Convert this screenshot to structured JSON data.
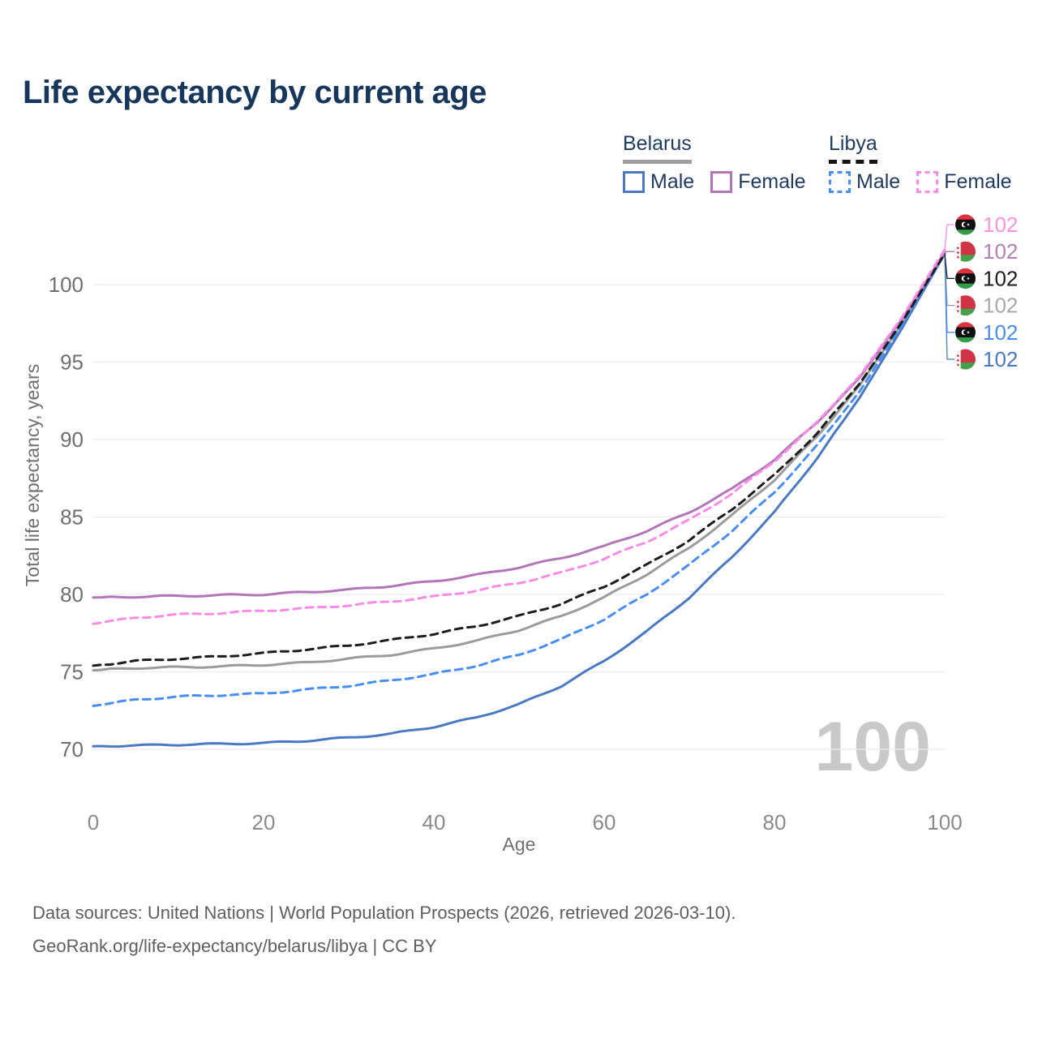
{
  "title": "Life expectancy by current age",
  "legend": {
    "groups": [
      {
        "country": "Belarus",
        "line_style": "solid",
        "items": [
          {
            "label": "Male",
            "series": "bm"
          },
          {
            "label": "Female",
            "series": "bf"
          }
        ]
      },
      {
        "country": "Libya",
        "line_style": "dashed",
        "items": [
          {
            "label": "Male",
            "series": "lm"
          },
          {
            "label": "Female",
            "series": "lf"
          }
        ]
      }
    ]
  },
  "watermark": "100",
  "footer": {
    "line1": "Data sources: United Nations | World Population Prospects (2026, retrieved 2026-03-10).",
    "line2": "GeoRank.org/life-expectancy/belarus/libya | CC BY"
  },
  "chart_data": {
    "type": "line",
    "title": "Life expectancy by current age",
    "xlabel": "Age",
    "ylabel": "Total life expectancy, years",
    "xlim": [
      0,
      100
    ],
    "ylim": [
      68.5,
      103.5
    ],
    "x_ticks": [
      0,
      20,
      40,
      60,
      80,
      100
    ],
    "y_ticks": [
      70,
      75,
      80,
      85,
      90,
      95,
      100
    ],
    "grid": "horizontal-only",
    "gridline_color": "#ececec",
    "ages": [
      0,
      5,
      10,
      15,
      20,
      25,
      30,
      35,
      40,
      45,
      50,
      55,
      60,
      65,
      70,
      75,
      80,
      85,
      90,
      95,
      100
    ],
    "series": [
      {
        "id": "bb",
        "name": "Belarus Both sexes",
        "country": "Belarus",
        "sex": "Both",
        "color": "#9b9b9b",
        "dash": false,
        "end_label": "102",
        "label_color": "#a8a8a8",
        "label_row": 3,
        "flag": "belarus",
        "values": [
          75.1,
          75.25,
          75.3,
          75.35,
          75.45,
          75.6,
          75.85,
          76.1,
          76.5,
          77.0,
          77.7,
          78.6,
          79.8,
          81.3,
          83.0,
          85.1,
          87.4,
          90.2,
          93.5,
          97.5,
          102.0
        ]
      },
      {
        "id": "bm",
        "name": "Belarus Male",
        "country": "Belarus",
        "sex": "Male",
        "color": "#4a79c4",
        "dash": false,
        "end_label": "102",
        "label_color": "#4a79c4",
        "label_row": 5,
        "flag": "belarus",
        "values": [
          70.2,
          70.25,
          70.3,
          70.35,
          70.4,
          70.55,
          70.75,
          71.0,
          71.45,
          72.05,
          72.9,
          74.1,
          75.7,
          77.6,
          79.8,
          82.4,
          85.3,
          88.8,
          92.7,
          97.2,
          102.0
        ]
      },
      {
        "id": "lm",
        "name": "Libya Male",
        "country": "Libya",
        "sex": "Male",
        "color": "#488ef2",
        "dash": true,
        "end_label": "102",
        "label_color": "#488ef2",
        "label_row": 4,
        "flag": "libya",
        "values": [
          72.8,
          73.2,
          73.4,
          73.5,
          73.6,
          73.85,
          74.1,
          74.45,
          74.85,
          75.4,
          76.1,
          77.1,
          78.4,
          80.0,
          81.9,
          84.1,
          86.6,
          89.6,
          93.1,
          97.4,
          102.0
        ]
      },
      {
        "id": "bf",
        "name": "Belarus Female",
        "country": "Belarus",
        "sex": "Female",
        "color": "#b175b8",
        "dash": false,
        "end_label": "102",
        "label_color": "#b57fb5",
        "label_row": 1,
        "flag": "belarus",
        "values": [
          79.8,
          79.85,
          79.9,
          79.95,
          80.0,
          80.15,
          80.3,
          80.55,
          80.85,
          81.25,
          81.75,
          82.35,
          83.1,
          84.1,
          85.3,
          86.8,
          88.7,
          91.1,
          94.0,
          97.8,
          102.1
        ]
      },
      {
        "id": "lb",
        "name": "Libya Both sexes",
        "country": "Libya",
        "sex": "Both",
        "color": "#1c1c1c",
        "dash": true,
        "end_label": "102",
        "label_color": "#1c1c1c",
        "label_row": 2,
        "flag": "libya",
        "values": [
          75.4,
          75.7,
          75.85,
          76.0,
          76.2,
          76.45,
          76.7,
          77.05,
          77.45,
          77.95,
          78.6,
          79.4,
          80.5,
          81.9,
          83.5,
          85.5,
          87.7,
          90.4,
          93.6,
          97.6,
          102.0
        ]
      },
      {
        "id": "lf",
        "name": "Libya Female",
        "country": "Libya",
        "sex": "Female",
        "color": "#f98ae8",
        "dash": true,
        "end_label": "102",
        "label_color": "#fa92e2",
        "label_row": 0,
        "flag": "libya",
        "values": [
          78.1,
          78.5,
          78.7,
          78.8,
          78.95,
          79.1,
          79.3,
          79.55,
          79.85,
          80.25,
          80.75,
          81.4,
          82.3,
          83.4,
          84.8,
          86.5,
          88.6,
          91.1,
          94.1,
          97.9,
          102.25
        ]
      }
    ],
    "legend_position": "top-right",
    "end_labels": [
      "102",
      "102",
      "102",
      "102",
      "102",
      "102"
    ]
  },
  "axis": {
    "x_tick_labels": [
      "0",
      "20",
      "40",
      "60",
      "80",
      "100"
    ],
    "y_tick_labels": [
      "70",
      "75",
      "80",
      "85",
      "90",
      "95",
      "100"
    ]
  }
}
